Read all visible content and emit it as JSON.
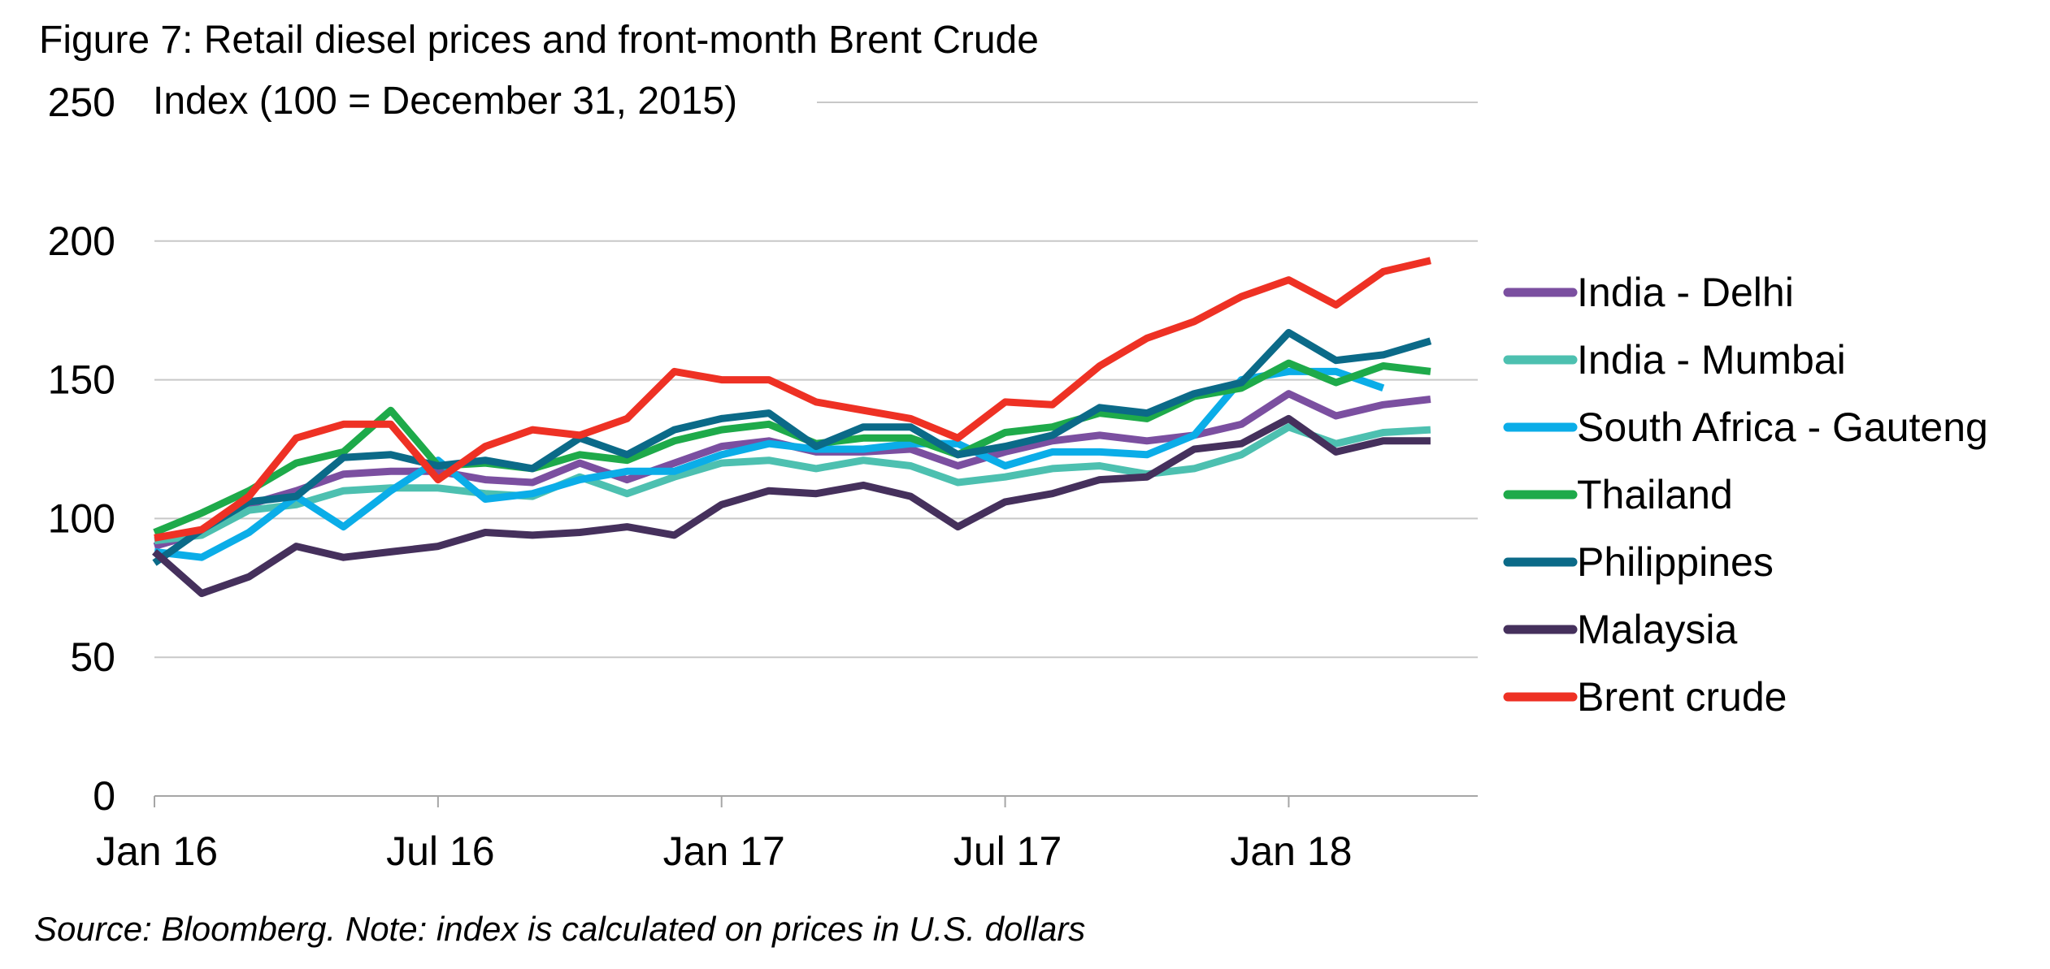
{
  "title": "Figure 7: Retail diesel prices and front-month Brent Crude",
  "subtitle": "Index (100 = December 31, 2015)",
  "source": "Source: Bloomberg. Note: index is calculated on prices in U.S. dollars",
  "chart_data": {
    "type": "line",
    "title": "Figure 7: Retail diesel prices and front-month Brent Crude",
    "ylabel": "Index (100 = December 31, 2015)",
    "ylim": [
      0,
      250
    ],
    "yticks": [
      0,
      50,
      100,
      150,
      200,
      250
    ],
    "xlim": [
      "2016-01",
      "2018-05"
    ],
    "xtick_labels": [
      {
        "x": "2016-01",
        "label": "Jan 16"
      },
      {
        "x": "2016-07",
        "label": "Jul 16"
      },
      {
        "x": "2017-01",
        "label": "Jan 17"
      },
      {
        "x": "2017-07",
        "label": "Jul 17"
      },
      {
        "x": "2018-01",
        "label": "Jan 18"
      }
    ],
    "grid": "horizontal",
    "legend_position": "right",
    "x": [
      "2016-01",
      "2016-02",
      "2016-03",
      "2016-04",
      "2016-05",
      "2016-06",
      "2016-07",
      "2016-08",
      "2016-09",
      "2016-10",
      "2016-11",
      "2016-12",
      "2017-01",
      "2017-02",
      "2017-03",
      "2017-04",
      "2017-05",
      "2017-06",
      "2017-07",
      "2017-08",
      "2017-09",
      "2017-10",
      "2017-11",
      "2017-12",
      "2018-01",
      "2018-02",
      "2018-03",
      "2018-04",
      "2018-05"
    ],
    "series": [
      {
        "name": "India - Delhi",
        "color": "#7B4FA0",
        "values": [
          90,
          95,
          105,
          110,
          116,
          117,
          117,
          114,
          113,
          120,
          114,
          120,
          126,
          128,
          124,
          124,
          125,
          119,
          124,
          128,
          130,
          128,
          130,
          134,
          145,
          137,
          141,
          143,
          null
        ]
      },
      {
        "name": "India - Mumbai",
        "color": "#4DC0B0",
        "values": [
          92,
          94,
          103,
          105,
          110,
          111,
          111,
          109,
          108,
          115,
          109,
          115,
          120,
          121,
          118,
          121,
          119,
          113,
          115,
          118,
          119,
          116,
          118,
          123,
          133,
          127,
          131,
          132,
          null
        ]
      },
      {
        "name": "South Africa - Gauteng",
        "color": "#0BADE8",
        "values": [
          88,
          86,
          95,
          108,
          97,
          110,
          121,
          107,
          109,
          114,
          117,
          117,
          123,
          127,
          125,
          125,
          127,
          127,
          119,
          124,
          124,
          123,
          130,
          150,
          153,
          153,
          147,
          null,
          null
        ]
      },
      {
        "name": "Thailand",
        "color": "#1EAA4A",
        "values": [
          95,
          102,
          110,
          120,
          124,
          139,
          119,
          120,
          118,
          123,
          121,
          128,
          132,
          134,
          127,
          129,
          129,
          123,
          131,
          133,
          138,
          136,
          144,
          147,
          156,
          149,
          155,
          153,
          null
        ]
      },
      {
        "name": "Philippines",
        "color": "#0B6A88",
        "values": [
          84,
          96,
          106,
          108,
          122,
          123,
          119,
          121,
          118,
          129,
          123,
          132,
          136,
          138,
          126,
          133,
          133,
          123,
          126,
          130,
          140,
          138,
          145,
          149,
          167,
          157,
          159,
          164,
          null
        ]
      },
      {
        "name": "Malaysia",
        "color": "#45305C",
        "values": [
          88,
          73,
          79,
          90,
          86,
          88,
          90,
          95,
          94,
          95,
          97,
          94,
          105,
          110,
          109,
          112,
          108,
          97,
          106,
          109,
          114,
          115,
          125,
          127,
          136,
          124,
          128,
          128,
          null
        ]
      },
      {
        "name": "Brent crude",
        "color": "#EE3124",
        "values": [
          93,
          96,
          108,
          129,
          134,
          134,
          114,
          126,
          132,
          130,
          136,
          153,
          150,
          150,
          142,
          139,
          136,
          129,
          142,
          141,
          155,
          165,
          171,
          180,
          186,
          177,
          189,
          193,
          null
        ]
      }
    ]
  }
}
